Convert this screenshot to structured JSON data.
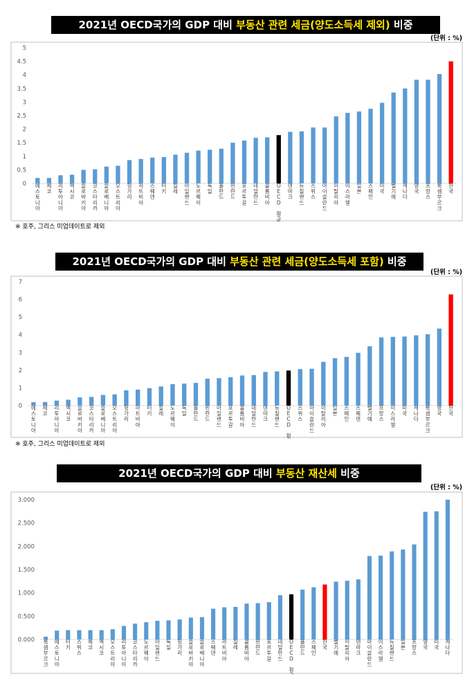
{
  "colors": {
    "bar": "#5b9bd5",
    "oecd": "#000000",
    "korea": "#ff0000",
    "highlight": "#ffe600"
  },
  "chart_data": [
    {
      "type": "bar",
      "title": {
        "prefix": "2021년 OECD국가의 GDP 대비 ",
        "highlight": "부동산 관련 세금(양도소득세 제외)",
        "suffix": " 비중"
      },
      "unit": "(단위 : %)",
      "note": "※ 호주, 그리스 미업데이트로 제외",
      "ylim": [
        0,
        5
      ],
      "yticks": [
        "0",
        "0.5",
        "1",
        "1.5",
        "2",
        "2.5",
        "3",
        "3.5",
        "4",
        "4.5",
        "5"
      ],
      "categories": [
        "에스토니아",
        "체코",
        "리투아니아",
        "멕시코",
        "슬로바키아",
        "코스타리카",
        "슬로베니아",
        "오스트리아",
        "헝가리",
        "라트비아",
        "스웨덴",
        "터키",
        "칠레",
        "아일랜드",
        "노르웨이",
        "독일",
        "폴란드",
        "핀란드",
        "포르투갈",
        "네덜란드",
        "콜롬비아",
        "OECD 평균",
        "덴마크",
        "뉴질랜드",
        "스위스",
        "아이슬란드",
        "이탈리아",
        "이스라엘",
        "일본",
        "스페인",
        "미국",
        "벨기에",
        "캐나다",
        "영국",
        "프랑스",
        "룩셈부르크",
        "한국"
      ],
      "values": [
        0.2,
        0.2,
        0.3,
        0.32,
        0.5,
        0.52,
        0.62,
        0.65,
        0.86,
        0.9,
        0.95,
        0.97,
        1.06,
        1.13,
        1.21,
        1.24,
        1.28,
        1.5,
        1.58,
        1.68,
        1.7,
        1.78,
        1.9,
        1.92,
        2.06,
        2.06,
        2.47,
        2.6,
        2.65,
        2.75,
        2.97,
        3.35,
        3.5,
        3.82,
        3.82,
        4.03,
        4.5
      ]
    },
    {
      "type": "bar",
      "title": {
        "prefix": "2021년 OECD국가의 GDP 대비 ",
        "highlight": "부동산 관련 세금(양도소득세 포함)",
        "suffix": " 비중"
      },
      "unit": "(단위 : %)",
      "note": "※ 호주, 그리스 미업데이트로 제외",
      "ylim": [
        0,
        7
      ],
      "yticks": [
        "0",
        "1",
        "2",
        "3",
        "4",
        "5",
        "6",
        "7"
      ],
      "categories": [
        "에스토니아",
        "체코",
        "리투아니아",
        "멕시코",
        "슬로바키아",
        "코스타리카",
        "슬로베니아",
        "오스트리아",
        "헝가리",
        "라트비아",
        "터키",
        "칠레",
        "노르웨이",
        "독일",
        "폴란드",
        "핀란드",
        "아일랜드",
        "포르투갈",
        "콜롬비아",
        "네덜란드",
        "덴마크",
        "뉴질랜드",
        "OECD 평균",
        "스위스",
        "아이슬란드",
        "이탈리아",
        "일본",
        "스페인",
        "스웨덴",
        "벨기에",
        "프랑스",
        "이스라엘",
        "미국",
        "캐나다",
        "룩셈부르크",
        "영국",
        "한국"
      ],
      "values": [
        0.19,
        0.2,
        0.28,
        0.33,
        0.46,
        0.49,
        0.6,
        0.63,
        0.86,
        0.9,
        0.98,
        1.08,
        1.21,
        1.24,
        1.28,
        1.52,
        1.55,
        1.6,
        1.7,
        1.72,
        1.9,
        1.93,
        1.98,
        2.06,
        2.08,
        2.47,
        2.68,
        2.75,
        2.98,
        3.35,
        3.85,
        3.88,
        3.9,
        3.97,
        4.03,
        4.35,
        6.28
      ]
    },
    {
      "type": "bar",
      "title": {
        "prefix": "2021년 OECD국가의 GDP 대비 ",
        "highlight": "부동산 재산세",
        "suffix": " 비중"
      },
      "unit": "(단위 : %)",
      "ylim": [
        0,
        3
      ],
      "yticks": [
        "0.000",
        "0.500",
        "1.000",
        "1.500",
        "2.000",
        "2.500",
        "3.000"
      ],
      "categories": [
        "룩셈부르크",
        "에스토니아",
        "터키",
        "스위스",
        "체코",
        "멕시코",
        "오스트리아",
        "리투아니아",
        "코스타리카",
        "노르웨이",
        "아일랜드",
        "독일",
        "헝가리",
        "슬로바키아",
        "슬로베니아",
        "스웨덴",
        "라트비아",
        "칠레",
        "콜롬비아",
        "핀란드",
        "포르투갈",
        "네덜란드",
        "OECD 평균",
        "폴란드",
        "스페인",
        "한국",
        "벨기에",
        "이탈리아",
        "덴마크",
        "아이슬란드",
        "이스라엘",
        "뉴질랜드",
        "일본",
        "프랑스",
        "영국",
        "미국",
        "캐나다"
      ],
      "values": [
        0.06,
        0.19,
        0.2,
        0.2,
        0.2,
        0.2,
        0.22,
        0.29,
        0.34,
        0.37,
        0.4,
        0.41,
        0.43,
        0.47,
        0.48,
        0.66,
        0.69,
        0.7,
        0.77,
        0.78,
        0.8,
        0.95,
        0.97,
        1.07,
        1.12,
        1.18,
        1.24,
        1.26,
        1.29,
        1.79,
        1.8,
        1.89,
        1.93,
        2.04,
        2.74,
        2.75,
        3.0
      ]
    }
  ]
}
